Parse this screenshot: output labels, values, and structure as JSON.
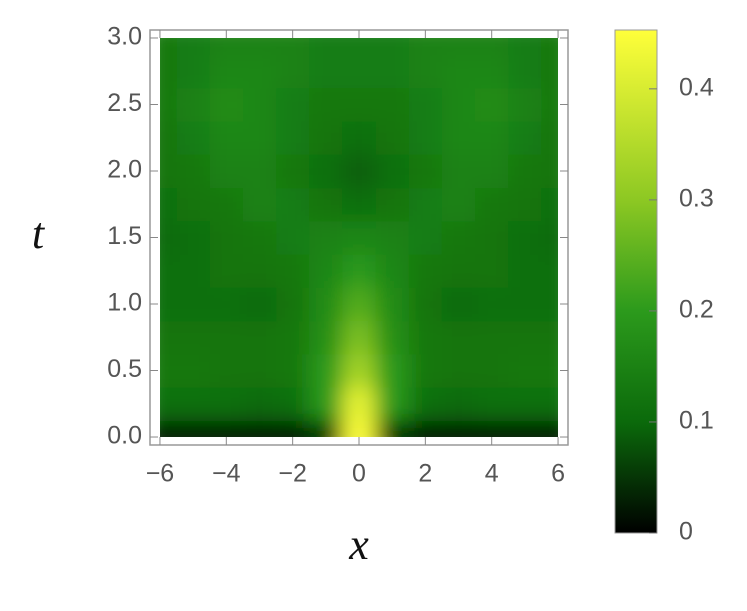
{
  "chart_data": {
    "type": "heatmap",
    "x_label": "x",
    "y_label": "t",
    "x": [
      -6,
      -5,
      -4,
      -3,
      -2,
      -1,
      0,
      1,
      2,
      3,
      4,
      5,
      6
    ],
    "y": [
      0,
      0.25,
      0.5,
      0.75,
      1,
      1.25,
      1.5,
      1.75,
      2,
      2.25,
      2.5,
      2.75,
      3
    ],
    "z": [
      [
        0.01,
        0.01,
        0.01,
        0.01,
        0.01,
        0.05,
        0.45,
        0.05,
        0.01,
        0.01,
        0.01,
        0.01,
        0.01
      ],
      [
        0.11,
        0.11,
        0.11,
        0.1,
        0.11,
        0.2,
        0.42,
        0.2,
        0.11,
        0.1,
        0.11,
        0.11,
        0.11
      ],
      [
        0.13,
        0.13,
        0.12,
        0.12,
        0.13,
        0.2,
        0.33,
        0.2,
        0.13,
        0.12,
        0.12,
        0.13,
        0.13
      ],
      [
        0.12,
        0.12,
        0.12,
        0.12,
        0.13,
        0.18,
        0.28,
        0.18,
        0.13,
        0.12,
        0.12,
        0.12,
        0.12
      ],
      [
        0.11,
        0.11,
        0.11,
        0.1,
        0.12,
        0.17,
        0.24,
        0.17,
        0.12,
        0.1,
        0.11,
        0.11,
        0.11
      ],
      [
        0.11,
        0.11,
        0.12,
        0.12,
        0.13,
        0.16,
        0.2,
        0.16,
        0.13,
        0.12,
        0.12,
        0.11,
        0.11
      ],
      [
        0.1,
        0.11,
        0.12,
        0.13,
        0.14,
        0.15,
        0.16,
        0.15,
        0.14,
        0.13,
        0.12,
        0.11,
        0.1
      ],
      [
        0.11,
        0.12,
        0.13,
        0.15,
        0.14,
        0.12,
        0.11,
        0.12,
        0.14,
        0.15,
        0.13,
        0.12,
        0.11
      ],
      [
        0.12,
        0.13,
        0.15,
        0.15,
        0.13,
        0.11,
        0.09,
        0.11,
        0.13,
        0.15,
        0.15,
        0.13,
        0.12
      ],
      [
        0.12,
        0.14,
        0.16,
        0.16,
        0.14,
        0.12,
        0.11,
        0.12,
        0.14,
        0.16,
        0.16,
        0.14,
        0.12
      ],
      [
        0.13,
        0.15,
        0.17,
        0.16,
        0.14,
        0.13,
        0.13,
        0.13,
        0.14,
        0.16,
        0.17,
        0.15,
        0.13
      ],
      [
        0.13,
        0.14,
        0.16,
        0.16,
        0.15,
        0.14,
        0.14,
        0.14,
        0.15,
        0.16,
        0.16,
        0.14,
        0.13
      ],
      [
        0.13,
        0.14,
        0.15,
        0.15,
        0.15,
        0.14,
        0.14,
        0.14,
        0.15,
        0.15,
        0.15,
        0.14,
        0.13
      ]
    ],
    "xlim": [
      -6.3,
      6.3
    ],
    "ylim": [
      -0.06,
      3.06
    ],
    "xticks": [
      {
        "value": -6,
        "label": "−6"
      },
      {
        "value": -4,
        "label": "−4"
      },
      {
        "value": -2,
        "label": "−2"
      },
      0,
      2,
      4,
      6
    ],
    "yticks": [
      {
        "value": 0,
        "label": "0.0"
      },
      0.5,
      {
        "value": 1,
        "label": "1.0"
      },
      1.5,
      {
        "value": 2,
        "label": "2.0"
      },
      2.5,
      {
        "value": 3,
        "label": "3.0"
      }
    ],
    "colorbar_lim": [
      0,
      0.453
    ],
    "colorbar_ticks": [
      0,
      0.1,
      0.2,
      0.3,
      0.4
    ],
    "colorscale": [
      [
        0,
        "#000000"
      ],
      [
        0.1,
        "#0b6a0b"
      ],
      [
        0.2,
        "#2c9a1c"
      ],
      [
        0.3,
        "#8dc823"
      ],
      [
        0.453,
        "#ffff3a"
      ]
    ]
  }
}
